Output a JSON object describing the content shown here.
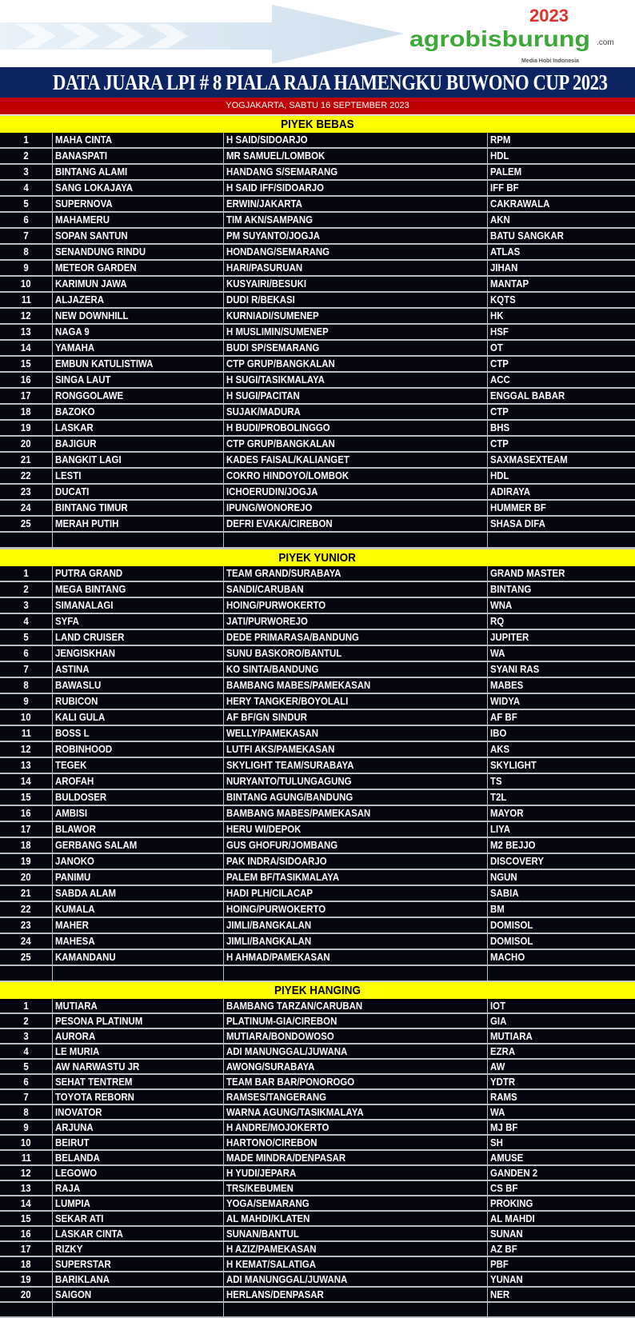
{
  "header": {
    "logo_text": "agrobisburung",
    "logo_year": "2023",
    "logo_domain": ".com",
    "logo_tagline": "Media Hobi Indonesia",
    "title": "DATA JUARA LPI # 8 PIALA RAJA HAMENGKU BUWONO CUP 2023",
    "subtitle": "YOGJAKARTA, SABTU 16 SEPTEMBER 2023"
  },
  "colors": {
    "title_bg": "#0d2463",
    "subtitle_bg": "#c00000",
    "section_bg": "#ffff00",
    "table_bg": "#05050f"
  },
  "sections": [
    {
      "title": "PIYEK BEBAS",
      "rows": [
        [
          "1",
          "MAHA CINTA",
          "H SAID/SIDOARJO",
          "RPM"
        ],
        [
          "2",
          "BANASPATI",
          "MR SAMUEL/LOMBOK",
          "HDL"
        ],
        [
          "3",
          "BINTANG ALAMI",
          "HANDANG S/SEMARANG",
          "PALEM"
        ],
        [
          "4",
          "SANG LOKAJAYA",
          "H SAID IFF/SIDOARJO",
          "IFF BF"
        ],
        [
          "5",
          "SUPERNOVA",
          "ERWIN/JAKARTA",
          "CAKRAWALA"
        ],
        [
          "6",
          "MAHAMERU",
          "TIM AKN/SAMPANG",
          "AKN"
        ],
        [
          "7",
          "SOPAN SANTUN",
          "PM SUYANTO/JOGJA",
          "BATU SANGKAR"
        ],
        [
          "8",
          "SENANDUNG RINDU",
          "HONDANG/SEMARANG",
          "ATLAS"
        ],
        [
          "9",
          "METEOR GARDEN",
          "HARI/PASURUAN",
          "JIHAN"
        ],
        [
          "10",
          "KARIMUN JAWA",
          "KUSYAIRI/BESUKI",
          "MANTAP"
        ],
        [
          "11",
          "ALJAZERA",
          "DUDI R/BEKASI",
          "KQTS"
        ],
        [
          "12",
          "NEW DOWNHILL",
          "KURNIADI/SUMENEP",
          "HK"
        ],
        [
          "13",
          "NAGA 9",
          "H MUSLIMIN/SUMENEP",
          "HSF"
        ],
        [
          "14",
          "YAMAHA",
          "BUDI SP/SEMARANG",
          "OT"
        ],
        [
          "15",
          "EMBUN KATULISTIWA",
          "CTP GRUP/BANGKALAN",
          "CTP"
        ],
        [
          "16",
          "SINGA LAUT",
          "H SUGI/TASIKMALAYA",
          "ACC"
        ],
        [
          "17",
          "RONGGOLAWE",
          "H SUGI/PACITAN",
          "ENGGAL BABAR"
        ],
        [
          "18",
          "BAZOKO",
          "SUJAK/MADURA",
          "CTP"
        ],
        [
          "19",
          "LASKAR",
          "H BUDI/PROBOLINGGO",
          "BHS"
        ],
        [
          "20",
          "BAJIGUR",
          "CTP GRUP/BANGKALAN",
          "CTP"
        ],
        [
          "21",
          "BANGKIT LAGI",
          "KADES FAISAL/KALIANGET",
          "SAXMASEXTEAM"
        ],
        [
          "22",
          "LESTI",
          "COKRO HINDOYO/LOMBOK",
          "HDL"
        ],
        [
          "23",
          "DUCATI",
          "ICHOERUDIN/JOGJA",
          "ADIRAYA"
        ],
        [
          "24",
          "BINTANG TIMUR",
          "IPUNG/WONOREJO",
          "HUMMER BF"
        ],
        [
          "25",
          "MERAH PUTIH",
          "DEFRI EVAKA/CIREBON",
          "SHASA DIFA"
        ],
        [
          "",
          "",
          "",
          ""
        ]
      ]
    },
    {
      "title": "PIYEK YUNIOR",
      "rows": [
        [
          "1",
          "PUTRA GRAND",
          "TEAM GRAND/SURABAYA",
          "GRAND MASTER"
        ],
        [
          "2",
          "MEGA BINTANG",
          "SANDI/CARUBAN",
          "BINTANG"
        ],
        [
          "3",
          "SIMANALAGI",
          "HOING/PURWOKERTO",
          "WNA"
        ],
        [
          "4",
          "SYFA",
          "JATI/PURWOREJO",
          "RQ"
        ],
        [
          "5",
          "LAND CRUISER",
          "DEDE PRIMARASA/BANDUNG",
          "JUPITER"
        ],
        [
          "6",
          "JENGISKHAN",
          "SUNU BASKORO/BANTUL",
          "WA"
        ],
        [
          "7",
          "ASTINA",
          "KO SINTA/BANDUNG",
          "SYANI RAS"
        ],
        [
          "8",
          "BAWASLU",
          "BAMBANG MABES/PAMEKASAN",
          "MABES"
        ],
        [
          "9",
          "RUBICON",
          "HERY TANGKER/BOYOLALI",
          "WIDYA"
        ],
        [
          "10",
          "KALI GULA",
          "AF BF/GN SINDUR",
          "AF BF"
        ],
        [
          "11",
          "BOSS L",
          "WELLY/PAMEKASAN",
          "IBO"
        ],
        [
          "12",
          "ROBINHOOD",
          "LUTFI AKS/PAMEKASAN",
          "AKS"
        ],
        [
          "13",
          "TEGEK",
          "SKYLIGHT TEAM/SURABAYA",
          "SKYLIGHT"
        ],
        [
          "14",
          "AROFAH",
          "NURYANTO/TULUNGAGUNG",
          "TS"
        ],
        [
          "15",
          "BULDOSER",
          "BINTANG AGUNG/BANDUNG",
          "T2L"
        ],
        [
          "16",
          "AMBISI",
          "BAMBANG MABES/PAMEKASAN",
          "MAYOR"
        ],
        [
          "17",
          "BLAWOR",
          "HERU WI/DEPOK",
          "LIYA"
        ],
        [
          "18",
          "GERBANG SALAM",
          "GUS GHOFUR/JOMBANG",
          "M2 BEJJO"
        ],
        [
          "19",
          "JANOKO",
          "PAK INDRA/SIDOARJO",
          "DISCOVERY"
        ],
        [
          "20",
          "PANIMU",
          "PALEM BF/TASIKMALAYA",
          "NGUN"
        ],
        [
          "21",
          "SABDA ALAM",
          "HADI PLH/CILACAP",
          "SABIA"
        ],
        [
          "22",
          "KUMALA",
          "HOING/PURWOKERTO",
          "BM"
        ],
        [
          "23",
          "MAHER",
          "JIMLI/BANGKALAN",
          "DOMISOL"
        ],
        [
          "24",
          "MAHESA",
          "JIMLI/BANGKALAN",
          "DOMISOL"
        ],
        [
          "25",
          "KAMANDANU",
          "H AHMAD/PAMEKASAN",
          "MACHO"
        ],
        [
          "",
          "",
          "",
          ""
        ]
      ]
    },
    {
      "title": "PIYEK HANGING",
      "rows": [
        [
          "1",
          "MUTIARA",
          "BAMBANG TARZAN/CARUBAN",
          "IOT"
        ],
        [
          "2",
          "PESONA PLATINUM",
          "PLATINUM-GIA/CIREBON",
          "GIA"
        ],
        [
          "3",
          "AURORA",
          "MUTIARA/BONDOWOSO",
          "MUTIARA"
        ],
        [
          "4",
          "LE MURIA",
          "ADI MANUNGGAL/JUWANA",
          "EZRA"
        ],
        [
          "5",
          "AW NARWASTU JR",
          "AWONG/SURABAYA",
          "AW"
        ],
        [
          "6",
          "SEHAT TENTREM",
          "TEAM BAR BAR/PONOROGO",
          "YDTR"
        ],
        [
          "7",
          "TOYOTA REBORN",
          "RAMSES/TANGERANG",
          "RAMS"
        ],
        [
          "8",
          "INOVATOR",
          "WARNA AGUNG/TASIKMALAYA",
          "WA"
        ],
        [
          "9",
          "ARJUNA",
          "H ANDRE/MOJOKERTO",
          "MJ BF"
        ],
        [
          "10",
          "BEIRUT",
          "HARTONO/CIREBON",
          "SH"
        ],
        [
          "11",
          "BELANDA",
          "MADE MINDRA/DENPASAR",
          "AMUSE"
        ],
        [
          "12",
          "LEGOWO",
          "H YUDI/JEPARA",
          "GANDEN 2"
        ],
        [
          "13",
          "RAJA",
          "TRS/KEBUMEN",
          "CS BF"
        ],
        [
          "14",
          "LUMPIA",
          "YOGA/SEMARANG",
          "PROKING"
        ],
        [
          "15",
          "SEKAR ATI",
          "AL MAHDI/KLATEN",
          "AL MAHDI"
        ],
        [
          "16",
          "LASKAR CINTA",
          "SUNAN/BANTUL",
          "SUNAN"
        ],
        [
          "17",
          "RIZKY",
          "H AZIZ/PAMEKASAN",
          "AZ BF"
        ],
        [
          "18",
          "SUPERSTAR",
          "H KEMAT/SALATIGA",
          "PBF"
        ],
        [
          "19",
          "BARIKLANA",
          "ADI MANUNGGAL/JUWANA",
          "YUNAN"
        ],
        [
          "20",
          "SAIGON",
          "HERLANS/DENPASAR",
          "NER"
        ],
        [
          "",
          "",
          "",
          ""
        ]
      ]
    }
  ]
}
